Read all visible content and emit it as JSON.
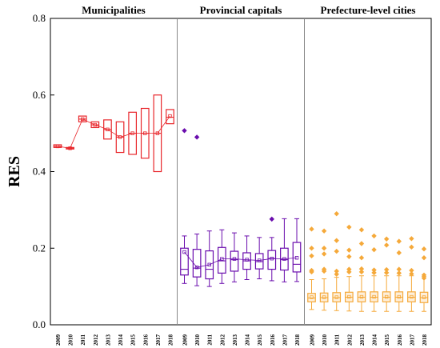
{
  "chart_data": {
    "type": "box",
    "ylabel": "RES",
    "ylim": [
      0.0,
      0.8
    ],
    "yticks": [
      "0.0",
      "0.2",
      "0.4",
      "0.6",
      "0.8"
    ],
    "years": [
      "2009",
      "2010",
      "2011",
      "2012",
      "2013",
      "2014",
      "2015",
      "2016",
      "2017",
      "2018"
    ],
    "panels": [
      {
        "title": "Municipalities",
        "color": "#e8262b",
        "mean_line": true,
        "boxes": [
          {
            "year": "2009",
            "q1": 0.463,
            "median": 0.466,
            "q3": 0.47,
            "mean": 0.466
          },
          {
            "year": "2010",
            "q1": 0.459,
            "median": 0.461,
            "q3": 0.463,
            "mean": 0.461
          },
          {
            "year": "2011",
            "q1": 0.53,
            "median": 0.537,
            "q3": 0.545,
            "mean": 0.537
          },
          {
            "year": "2012",
            "q1": 0.515,
            "median": 0.522,
            "q3": 0.53,
            "mean": 0.522
          },
          {
            "year": "2013",
            "q1": 0.485,
            "median": 0.51,
            "q3": 0.535,
            "mean": 0.51
          },
          {
            "year": "2014",
            "q1": 0.45,
            "median": 0.49,
            "q3": 0.53,
            "mean": 0.49
          },
          {
            "year": "2015",
            "q1": 0.445,
            "median": 0.5,
            "q3": 0.555,
            "mean": 0.5
          },
          {
            "year": "2016",
            "q1": 0.435,
            "median": 0.5,
            "q3": 0.565,
            "mean": 0.5
          },
          {
            "year": "2017",
            "q1": 0.4,
            "median": 0.5,
            "q3": 0.6,
            "mean": 0.5
          },
          {
            "year": "2018",
            "q1": 0.525,
            "median": 0.542,
            "q3": 0.562,
            "mean": 0.545
          }
        ],
        "outliers": []
      },
      {
        "title": "Provincial capitals",
        "color": "#6a0dad",
        "mean_line": true,
        "boxes": [
          {
            "year": "2009",
            "whisker_low": 0.108,
            "q1": 0.13,
            "median": 0.145,
            "q3": 0.2,
            "whisker_high": 0.232,
            "mean": 0.19
          },
          {
            "year": "2010",
            "whisker_low": 0.102,
            "q1": 0.125,
            "median": 0.148,
            "q3": 0.197,
            "whisker_high": 0.237,
            "mean": 0.15
          },
          {
            "year": "2011",
            "whisker_low": 0.1,
            "q1": 0.12,
            "median": 0.145,
            "q3": 0.193,
            "whisker_high": 0.245,
            "mean": 0.157
          },
          {
            "year": "2012",
            "whisker_low": 0.108,
            "q1": 0.135,
            "median": 0.167,
            "q3": 0.202,
            "whisker_high": 0.248,
            "mean": 0.172
          },
          {
            "year": "2013",
            "whisker_low": 0.112,
            "q1": 0.14,
            "median": 0.17,
            "q3": 0.192,
            "whisker_high": 0.24,
            "mean": 0.172
          },
          {
            "year": "2014",
            "whisker_low": 0.118,
            "q1": 0.145,
            "median": 0.167,
            "q3": 0.188,
            "whisker_high": 0.232,
            "mean": 0.17
          },
          {
            "year": "2015",
            "whisker_low": 0.12,
            "q1": 0.146,
            "median": 0.165,
            "q3": 0.186,
            "whisker_high": 0.228,
            "mean": 0.168
          },
          {
            "year": "2016",
            "whisker_low": 0.115,
            "q1": 0.145,
            "median": 0.173,
            "q3": 0.194,
            "whisker_high": 0.228,
            "mean": 0.173
          },
          {
            "year": "2017",
            "whisker_low": 0.112,
            "q1": 0.143,
            "median": 0.17,
            "q3": 0.2,
            "whisker_high": 0.277,
            "mean": 0.172
          },
          {
            "year": "2018",
            "whisker_low": 0.113,
            "q1": 0.138,
            "median": 0.158,
            "q3": 0.215,
            "whisker_high": 0.277,
            "mean": 0.175
          }
        ],
        "outliers": [
          {
            "year": "2009",
            "value": 0.507
          },
          {
            "year": "2010",
            "value": 0.49
          },
          {
            "year": "2016",
            "value": 0.276
          }
        ]
      },
      {
        "title": "Prefecture-level cities",
        "color": "#f5a93a",
        "mean_line": false,
        "boxes": [
          {
            "year": "2009",
            "whisker_low": 0.04,
            "q1": 0.06,
            "median": 0.07,
            "q3": 0.082,
            "whisker_high": 0.118,
            "mean": 0.072
          },
          {
            "year": "2010",
            "whisker_low": 0.038,
            "q1": 0.06,
            "median": 0.071,
            "q3": 0.083,
            "whisker_high": 0.12,
            "mean": 0.072
          },
          {
            "year": "2011",
            "whisker_low": 0.037,
            "q1": 0.06,
            "median": 0.071,
            "q3": 0.084,
            "whisker_high": 0.124,
            "mean": 0.072
          },
          {
            "year": "2012",
            "whisker_low": 0.036,
            "q1": 0.06,
            "median": 0.072,
            "q3": 0.085,
            "whisker_high": 0.126,
            "mean": 0.073
          },
          {
            "year": "2013",
            "whisker_low": 0.035,
            "q1": 0.06,
            "median": 0.072,
            "q3": 0.086,
            "whisker_high": 0.128,
            "mean": 0.073
          },
          {
            "year": "2014",
            "whisker_low": 0.035,
            "q1": 0.06,
            "median": 0.072,
            "q3": 0.086,
            "whisker_high": 0.128,
            "mean": 0.073
          },
          {
            "year": "2015",
            "whisker_low": 0.035,
            "q1": 0.06,
            "median": 0.072,
            "q3": 0.086,
            "whisker_high": 0.128,
            "mean": 0.073
          },
          {
            "year": "2016",
            "whisker_low": 0.035,
            "q1": 0.06,
            "median": 0.072,
            "q3": 0.086,
            "whisker_high": 0.128,
            "mean": 0.073
          },
          {
            "year": "2017",
            "whisker_low": 0.035,
            "q1": 0.06,
            "median": 0.072,
            "q3": 0.086,
            "whisker_high": 0.128,
            "mean": 0.073
          },
          {
            "year": "2018",
            "whisker_low": 0.035,
            "q1": 0.058,
            "median": 0.071,
            "q3": 0.085,
            "whisker_high": 0.126,
            "mean": 0.072
          }
        ],
        "outliers": [
          {
            "year": "2009",
            "value": 0.25
          },
          {
            "year": "2009",
            "value": 0.2
          },
          {
            "year": "2009",
            "value": 0.18
          },
          {
            "year": "2009",
            "value": 0.142
          },
          {
            "year": "2009",
            "value": 0.138
          },
          {
            "year": "2010",
            "value": 0.245
          },
          {
            "year": "2010",
            "value": 0.2
          },
          {
            "year": "2010",
            "value": 0.185
          },
          {
            "year": "2010",
            "value": 0.145
          },
          {
            "year": "2010",
            "value": 0.14
          },
          {
            "year": "2011",
            "value": 0.29
          },
          {
            "year": "2011",
            "value": 0.22
          },
          {
            "year": "2011",
            "value": 0.192
          },
          {
            "year": "2011",
            "value": 0.14
          },
          {
            "year": "2011",
            "value": 0.132
          },
          {
            "year": "2012",
            "value": 0.255
          },
          {
            "year": "2012",
            "value": 0.195
          },
          {
            "year": "2012",
            "value": 0.178
          },
          {
            "year": "2012",
            "value": 0.145
          },
          {
            "year": "2012",
            "value": 0.138
          },
          {
            "year": "2013",
            "value": 0.248
          },
          {
            "year": "2013",
            "value": 0.212
          },
          {
            "year": "2013",
            "value": 0.175
          },
          {
            "year": "2013",
            "value": 0.146
          },
          {
            "year": "2013",
            "value": 0.138
          },
          {
            "year": "2014",
            "value": 0.232
          },
          {
            "year": "2014",
            "value": 0.196
          },
          {
            "year": "2014",
            "value": 0.143
          },
          {
            "year": "2014",
            "value": 0.136
          },
          {
            "year": "2015",
            "value": 0.224
          },
          {
            "year": "2015",
            "value": 0.208
          },
          {
            "year": "2015",
            "value": 0.144
          },
          {
            "year": "2015",
            "value": 0.136
          },
          {
            "year": "2016",
            "value": 0.218
          },
          {
            "year": "2016",
            "value": 0.188
          },
          {
            "year": "2016",
            "value": 0.145
          },
          {
            "year": "2016",
            "value": 0.135
          },
          {
            "year": "2017",
            "value": 0.225
          },
          {
            "year": "2017",
            "value": 0.203
          },
          {
            "year": "2017",
            "value": 0.142
          },
          {
            "year": "2017",
            "value": 0.133
          },
          {
            "year": "2018",
            "value": 0.198
          },
          {
            "year": "2018",
            "value": 0.175
          },
          {
            "year": "2018",
            "value": 0.13
          },
          {
            "year": "2018",
            "value": 0.122
          }
        ]
      }
    ]
  }
}
